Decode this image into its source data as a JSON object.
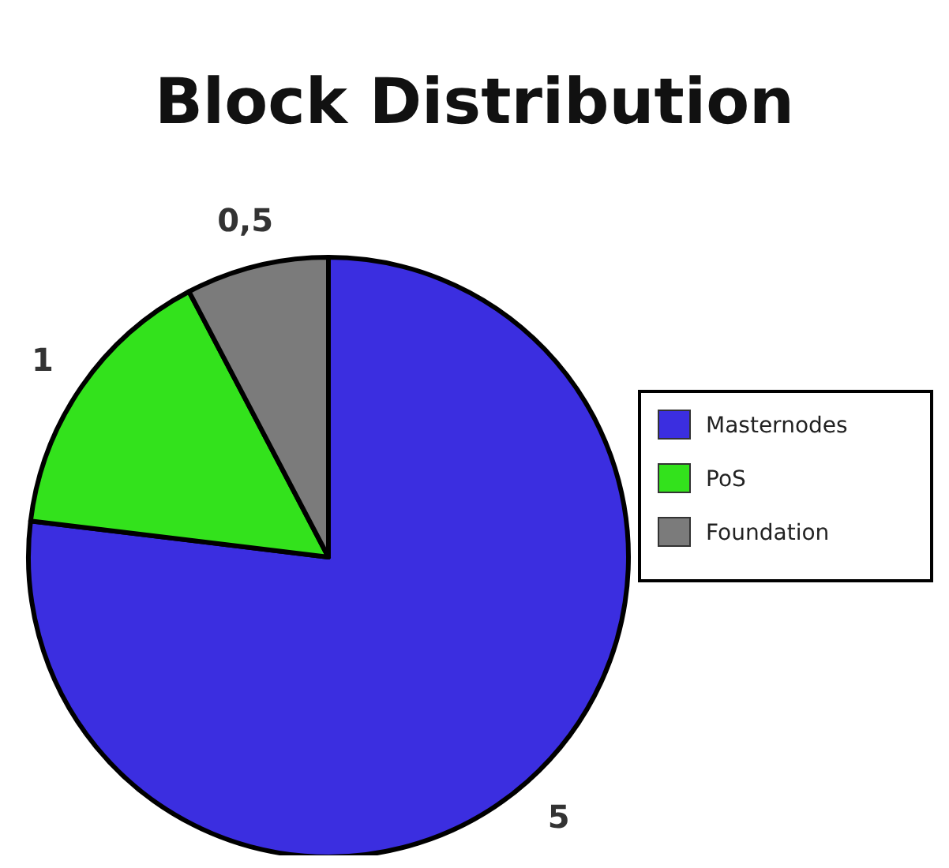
{
  "chart_data": {
    "type": "pie",
    "title": "Block Distribution",
    "categories": [
      "Masternodes",
      "PoS",
      "Foundation"
    ],
    "values": [
      5,
      1,
      0.5
    ],
    "colors": [
      "#3b2ee0",
      "#33e21c",
      "#7b7b7b"
    ],
    "value_labels": [
      "5",
      "1",
      "0,5"
    ],
    "legend": "right"
  }
}
